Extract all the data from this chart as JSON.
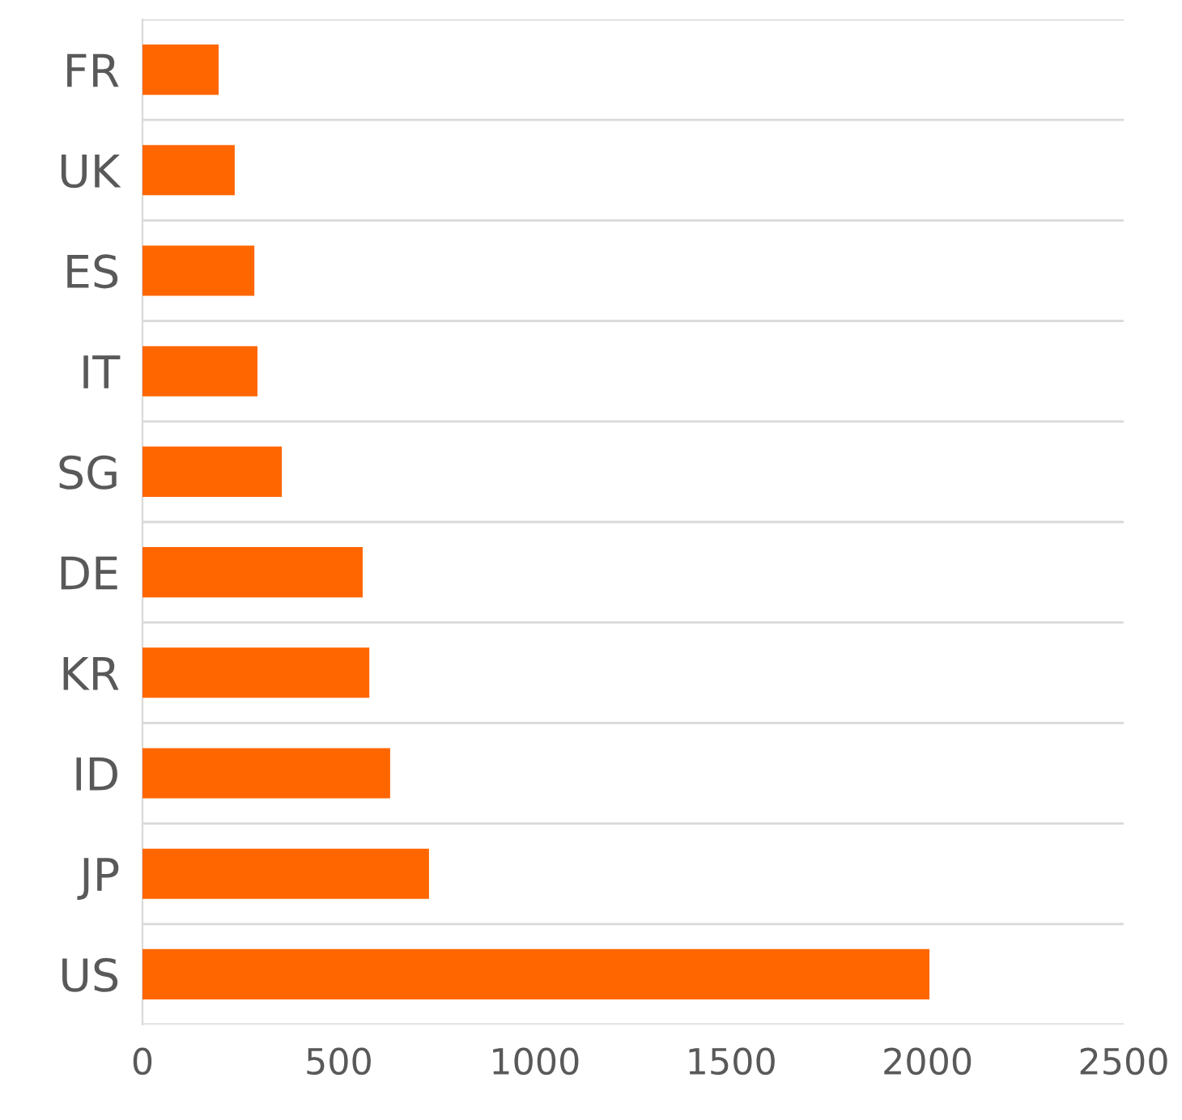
{
  "chart_data": {
    "type": "bar",
    "orientation": "horizontal",
    "categories": [
      "FR",
      "UK",
      "ES",
      "IT",
      "SG",
      "DE",
      "KR",
      "ID",
      "JP",
      "US"
    ],
    "values": [
      194,
      235,
      285,
      293,
      355,
      561,
      578,
      631,
      730,
      2005
    ],
    "color": "#ff6600",
    "xlim": [
      0,
      2500
    ],
    "xticks": [
      0,
      500,
      1000,
      1500,
      2000,
      2500
    ],
    "grid": "y",
    "legend": false
  }
}
